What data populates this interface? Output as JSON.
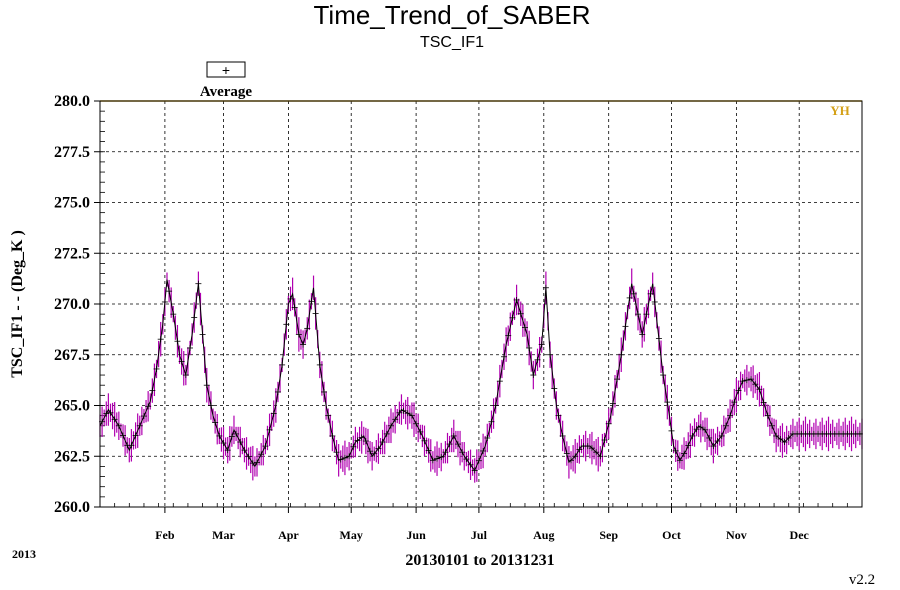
{
  "header": {
    "title": "Time_Trend_of_SABER",
    "subtitle": "TSC_IF1"
  },
  "legend": {
    "symbol": "+",
    "label": "Average"
  },
  "footer": {
    "year": "2013",
    "version": "v2.2"
  },
  "chart_data": {
    "type": "line",
    "title": "Time_Trend_of_SABER",
    "subtitle": "TSC_IF1",
    "xlabel": "20130101 to 20131231",
    "ylabel": "TSC_IF1  - - (Deg_K )",
    "xlim": [
      1,
      365
    ],
    "ylim": [
      260.0,
      280.0
    ],
    "yticks": [
      "260.0",
      "262.5",
      "265.0",
      "267.5",
      "270.0",
      "272.5",
      "275.0",
      "277.5",
      "280.0"
    ],
    "xtick_labels": [
      "Feb",
      "Mar",
      "Apr",
      "May",
      "Jun",
      "Jul",
      "Aug",
      "Sep",
      "Oct",
      "Nov",
      "Dec"
    ],
    "xtick_days": [
      32,
      60,
      91,
      121,
      152,
      182,
      213,
      244,
      274,
      305,
      335
    ],
    "limit_line": {
      "label": "YH",
      "value": 280.0,
      "color": "#d4a017"
    },
    "grid": true,
    "legend_position": "top-left",
    "colors": {
      "average": "#000000",
      "range": "#b000b0"
    },
    "series": [
      {
        "name": "Average",
        "x": [
          1,
          5,
          10,
          15,
          20,
          25,
          28,
          31,
          33,
          36,
          39,
          42,
          45,
          48,
          52,
          55,
          58,
          62,
          65,
          70,
          75,
          80,
          85,
          88,
          91,
          93,
          96,
          98,
          100,
          103,
          106,
          109,
          112,
          115,
          120,
          123,
          127,
          131,
          135,
          140,
          145,
          150,
          155,
          160,
          165,
          170,
          175,
          180,
          185,
          190,
          195,
          200,
          205,
          208,
          212,
          214,
          216,
          219,
          222,
          225,
          228,
          231,
          235,
          240,
          245,
          250,
          255,
          260,
          265,
          270,
          273,
          275,
          278,
          281,
          284,
          287,
          290,
          294,
          298,
          302,
          305,
          308,
          312,
          316,
          320,
          324,
          328,
          332,
          336,
          340,
          344,
          348,
          352,
          356,
          360,
          365
        ],
        "y": [
          264.0,
          264.8,
          264.0,
          262.8,
          264.0,
          265.2,
          266.8,
          269.0,
          271.2,
          269.5,
          267.5,
          266.5,
          268.5,
          271.0,
          266.0,
          264.5,
          263.5,
          262.8,
          263.8,
          262.8,
          262.0,
          263.0,
          265.0,
          267.0,
          270.0,
          270.5,
          268.5,
          268.0,
          268.8,
          270.8,
          267.0,
          265.0,
          263.5,
          262.3,
          262.5,
          263.2,
          263.5,
          262.5,
          263.0,
          264.0,
          264.8,
          264.5,
          263.5,
          262.3,
          262.5,
          263.5,
          262.5,
          261.8,
          263.0,
          265.0,
          268.0,
          270.2,
          268.5,
          266.5,
          268.0,
          270.8,
          267.5,
          265.0,
          263.5,
          262.2,
          262.5,
          263.0,
          263.0,
          262.5,
          264.5,
          267.5,
          271.0,
          268.5,
          271.0,
          266.5,
          264.5,
          263.0,
          262.3,
          262.8,
          263.5,
          264.0,
          263.8,
          263.0,
          263.5,
          264.5,
          265.5,
          266.2,
          266.3,
          265.8,
          264.5,
          263.5,
          263.2,
          263.6,
          263.6,
          263.6,
          263.6,
          263.6,
          263.6,
          263.6,
          263.6,
          263.6
        ]
      }
    ]
  }
}
